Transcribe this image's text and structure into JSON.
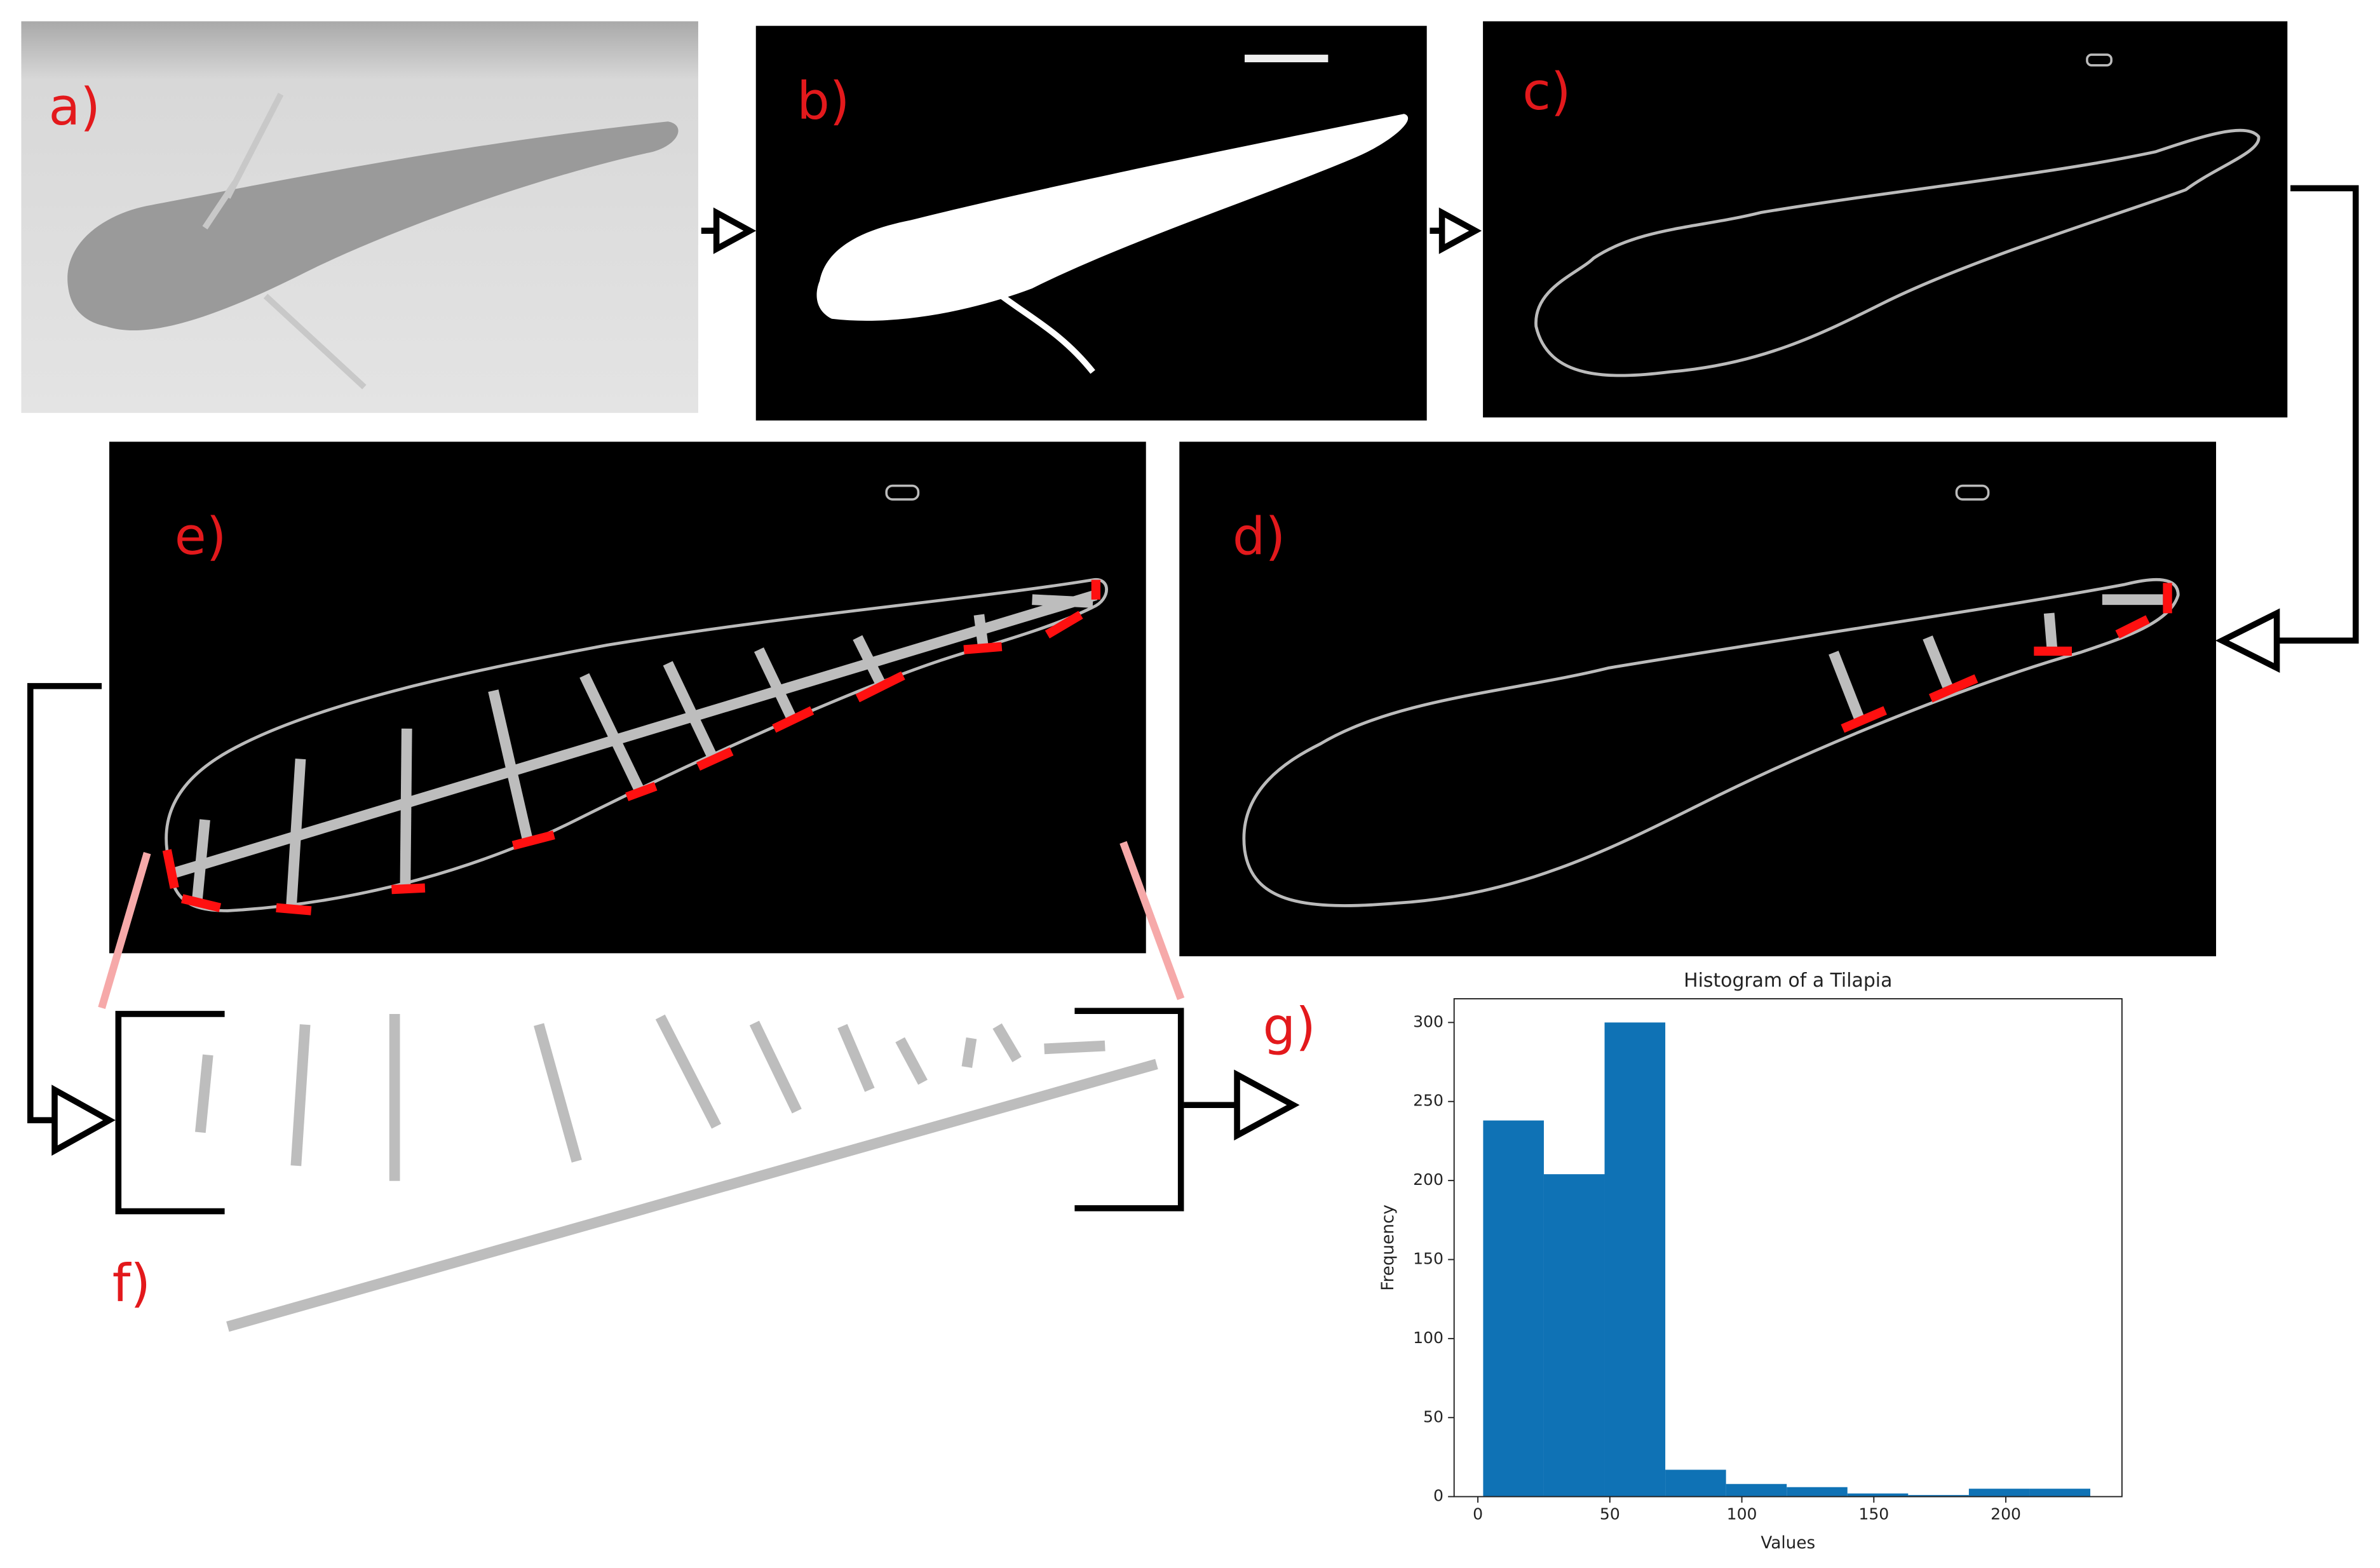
{
  "panels": {
    "a": "a)",
    "b": "b)",
    "c": "c)",
    "d": "d)",
    "e": "e)",
    "f": "f)",
    "g": "g)"
  },
  "chart_data": {
    "type": "histogram",
    "title": "Histogram of a Tilapia",
    "x_label": "Values",
    "y_label": "Frequency",
    "bins": [
      2,
      25,
      48,
      71,
      94,
      117,
      140,
      163,
      186,
      209,
      232
    ],
    "values": [
      238,
      204,
      300,
      17,
      8,
      6,
      2,
      1,
      5,
      5
    ],
    "color": "#0f72b5",
    "xlim": [
      -9,
      244
    ],
    "ylim": [
      0,
      315
    ],
    "xticks": [
      0,
      50,
      100,
      150,
      200
    ],
    "yticks": [
      0,
      50,
      100,
      150,
      200,
      250,
      300
    ]
  }
}
